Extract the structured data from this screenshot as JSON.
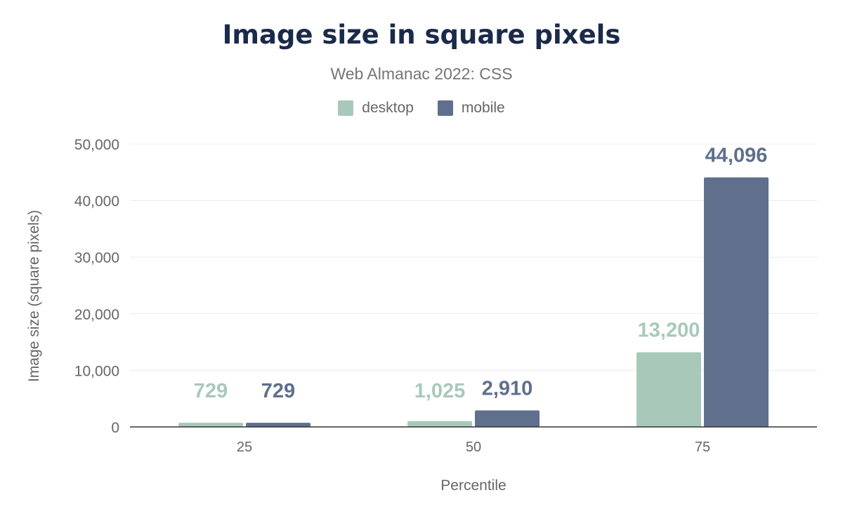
{
  "chart_data": {
    "type": "bar",
    "title": "Image size in square pixels",
    "subtitle": "Web Almanac 2022: CSS",
    "xlabel": "Percentile",
    "ylabel": "Image size (square pixels)",
    "categories": [
      "25",
      "50",
      "75"
    ],
    "series": [
      {
        "name": "desktop",
        "color": "#a8c9b9",
        "values": [
          729,
          1025,
          13200
        ],
        "labels": [
          "729",
          "1,025",
          "13,200"
        ]
      },
      {
        "name": "mobile",
        "color": "#5f6f8c",
        "values": [
          729,
          2910,
          44096
        ],
        "labels": [
          "729",
          "2,910",
          "44,096"
        ]
      }
    ],
    "ylim": [
      0,
      50000
    ],
    "yticks": [
      0,
      10000,
      20000,
      30000,
      40000,
      50000
    ],
    "ytick_labels": [
      "0",
      "10,000",
      "20,000",
      "30,000",
      "40,000",
      "50,000"
    ],
    "grid": true,
    "legend": "top-center"
  }
}
